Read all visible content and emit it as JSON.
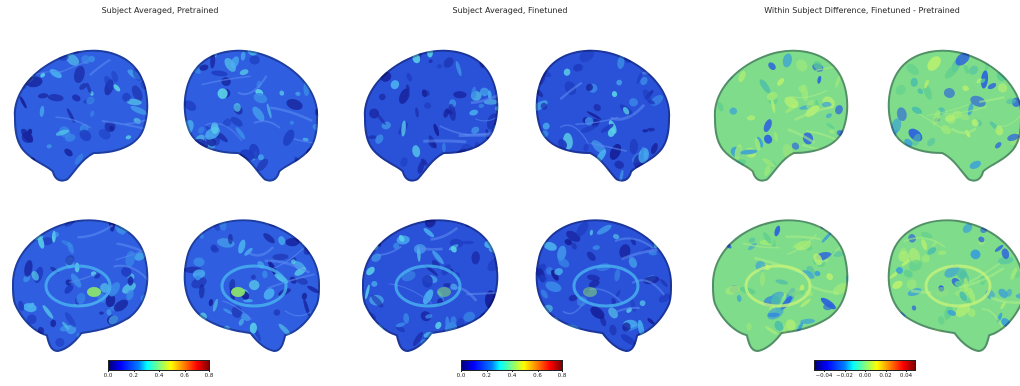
{
  "panels": [
    {
      "title": "Subject Averaged, Pretrained",
      "colormap": "jet",
      "base_color": "#2f5fe0",
      "ticks": [
        "0.0",
        "0.2",
        "0.4",
        "0.6",
        "0.8"
      ],
      "range": [
        0.0,
        0.8
      ]
    },
    {
      "title": "Subject Averaged, Finetuned",
      "colormap": "jet",
      "base_color": "#2a52d8",
      "ticks": [
        "0.0",
        "0.2",
        "0.4",
        "0.6",
        "0.8"
      ],
      "range": [
        0.0,
        0.8
      ]
    },
    {
      "title": "Within Subject Difference, Finetuned - Pretrained",
      "colormap": "jet",
      "base_color": "#7fdc8a",
      "ticks": [
        "−0.04",
        "−0.02",
        "0.00",
        "0.02",
        "0.04"
      ],
      "range": [
        -0.04,
        0.04
      ]
    }
  ],
  "views": [
    "left-lateral",
    "right-lateral",
    "left-medial",
    "right-medial"
  ]
}
